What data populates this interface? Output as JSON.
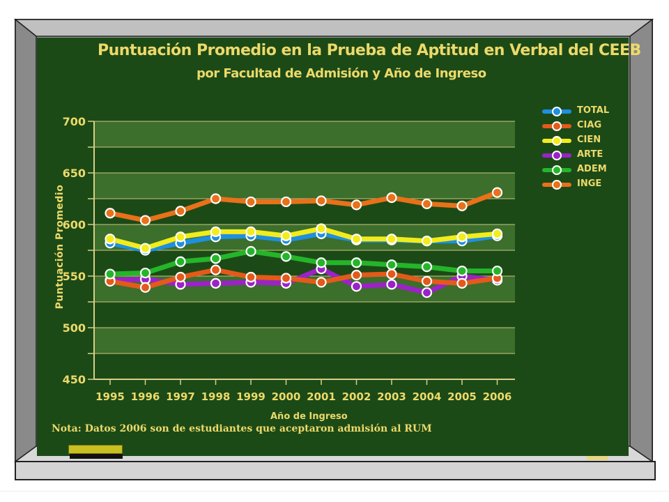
{
  "chart_data": {
    "type": "line",
    "title": "Puntuación Promedio en la Prueba de Aptitud en Verbal del CEEB",
    "subtitle": "por Facultad de Admisión y Año de Ingreso",
    "xlabel": "Año de Ingreso",
    "ylabel": "Puntuación Promedio",
    "categories": [
      "1995",
      "1996",
      "1997",
      "1998",
      "1999",
      "2000",
      "2001",
      "2002",
      "2003",
      "2004",
      "2005",
      "2006"
    ],
    "ylim": [
      450,
      700
    ],
    "yticks": [
      "450",
      "500",
      "550",
      "600",
      "650",
      "700"
    ],
    "grid": true,
    "legend_position": "right",
    "series": [
      {
        "name": "TOTAL",
        "color": "#1f8fe0",
        "values": [
          582,
          575,
          582,
          588,
          589,
          585,
          591,
          585,
          585,
          584,
          584,
          589
        ]
      },
      {
        "name": "CIAG",
        "color": "#e35a1a",
        "values": [
          545,
          539,
          549,
          556,
          549,
          548,
          544,
          551,
          552,
          545,
          543,
          548
        ]
      },
      {
        "name": "CIEN",
        "color": "#f2ec1c",
        "values": [
          586,
          577,
          588,
          593,
          593,
          589,
          596,
          586,
          586,
          584,
          588,
          591
        ]
      },
      {
        "name": "ARTE",
        "color": "#9c22c8",
        "values": [
          546,
          547,
          542,
          543,
          544,
          543,
          557,
          540,
          542,
          534,
          550,
          546
        ]
      },
      {
        "name": "ADEM",
        "color": "#25b52a",
        "values": [
          552,
          553,
          564,
          567,
          574,
          569,
          563,
          563,
          561,
          559,
          555,
          555
        ]
      },
      {
        "name": "INGE",
        "color": "#e8711a",
        "values": [
          611,
          604,
          613,
          625,
          622,
          622,
          623,
          619,
          626,
          620,
          618,
          631
        ]
      }
    ]
  },
  "note": "Nota:  Datos 2006 son de estudiantes que aceptaron admisión al RUM",
  "colors": {
    "board": "#1c4a17",
    "band": "#3c6e2c",
    "text": "#ecd96a"
  }
}
